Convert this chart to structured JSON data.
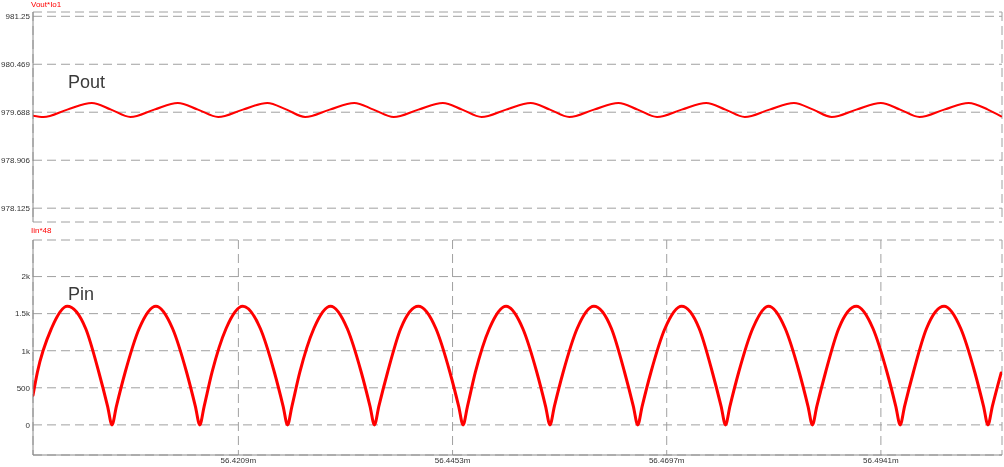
{
  "chart_data": [
    {
      "type": "line",
      "x": [
        56.3975,
        56.3987,
        56.4014,
        56.4042,
        56.4064,
        56.4086,
        56.4113,
        56.414,
        56.4163,
        56.4186,
        56.4214,
        56.4242,
        56.4264,
        56.4285,
        56.4313,
        56.4341,
        56.4363,
        56.4386,
        56.4414,
        56.4442,
        56.4464,
        56.4486,
        56.4514,
        56.4542,
        56.4564,
        56.4586,
        56.4614,
        56.4642,
        56.4664,
        56.4686,
        56.4714,
        56.4742,
        56.4764,
        56.4786,
        56.4814,
        56.4842,
        56.4864,
        56.4885,
        56.4913,
        56.4941,
        56.4963,
        56.4985,
        56.5013,
        56.5041,
        56.5063,
        56.5078
      ],
      "series": [
        {
          "name": "Vout*Io1",
          "color": "#ff0000",
          "values": [
            979.63,
            979.61,
            979.73,
            979.84,
            979.73,
            979.61,
            979.73,
            979.84,
            979.73,
            979.61,
            979.73,
            979.84,
            979.73,
            979.61,
            979.73,
            979.84,
            979.73,
            979.61,
            979.73,
            979.84,
            979.73,
            979.61,
            979.73,
            979.84,
            979.73,
            979.61,
            979.73,
            979.84,
            979.73,
            979.61,
            979.73,
            979.84,
            979.73,
            979.61,
            979.73,
            979.84,
            979.73,
            979.61,
            979.73,
            979.84,
            979.73,
            979.61,
            979.73,
            979.84,
            979.73,
            979.62
          ]
        }
      ],
      "annotations": [
        "Pout"
      ],
      "xlim": [
        56.3975,
        56.5079
      ],
      "xticks": [
        {
          "value": 56.4209,
          "label": null
        },
        {
          "value": 56.4453,
          "label": null
        },
        {
          "value": 56.4697,
          "label": null
        },
        {
          "value": 56.4941,
          "label": null
        }
      ],
      "ylim": [
        977.9,
        981.32
      ],
      "yticks": [
        978.125,
        978.906,
        979.688,
        980.469,
        981.25
      ],
      "grid": true,
      "legend": "top left",
      "tick_labels": "y"
    },
    {
      "type": "line",
      "x": [
        56.3975,
        56.398,
        56.3996,
        56.4014,
        56.4035,
        56.405,
        56.406,
        56.4065,
        56.407,
        56.408,
        56.4096,
        56.4115,
        56.4134,
        56.415,
        56.416,
        56.4165,
        56.417,
        56.4179,
        56.4195,
        56.4214,
        56.4234,
        56.425,
        56.426,
        56.4265,
        56.427,
        56.4279,
        56.4295,
        56.4314,
        56.4333,
        56.4349,
        56.4359,
        56.4364,
        56.4369,
        56.4379,
        56.4394,
        56.4414,
        56.4434,
        56.445,
        56.446,
        56.4465,
        56.447,
        56.4479,
        56.4495,
        56.4514,
        56.4533,
        56.4549,
        56.4559,
        56.4564,
        56.4569,
        56.4579,
        56.4595,
        56.4614,
        56.4634,
        56.4649,
        56.4659,
        56.4664,
        56.4669,
        56.4679,
        56.4695,
        56.4714,
        56.4734,
        56.4749,
        56.4759,
        56.4764,
        56.4769,
        56.4779,
        56.4795,
        56.4813,
        56.4832,
        56.4848,
        56.4858,
        56.4863,
        56.4868,
        56.4878,
        56.4893,
        56.4913,
        56.4932,
        56.4948,
        56.4958,
        56.4963,
        56.4968,
        56.4978,
        56.4993,
        56.5013,
        56.5032,
        56.5048,
        56.5058,
        56.5063,
        56.5068,
        56.5078
      ],
      "series": [
        {
          "name": "Iin*48",
          "color": "#ff0000",
          "values": [
            400,
            710,
            1300,
            1600,
            1300,
            710,
            250,
            0,
            250,
            710,
            1300,
            1600,
            1300,
            710,
            250,
            0,
            250,
            710,
            1300,
            1600,
            1300,
            710,
            250,
            0,
            250,
            710,
            1300,
            1600,
            1300,
            710,
            250,
            0,
            250,
            710,
            1300,
            1600,
            1300,
            710,
            250,
            0,
            250,
            710,
            1300,
            1600,
            1300,
            710,
            250,
            0,
            250,
            710,
            1300,
            1600,
            1300,
            710,
            250,
            0,
            250,
            710,
            1300,
            1600,
            1300,
            710,
            250,
            0,
            250,
            710,
            1300,
            1600,
            1300,
            710,
            250,
            0,
            250,
            710,
            1300,
            1600,
            1300,
            710,
            250,
            0,
            250,
            710,
            1300,
            1600,
            1300,
            710,
            250,
            0,
            250,
            700
          ]
        }
      ],
      "annotations": [
        "Pin"
      ],
      "xlim": [
        56.3975,
        56.5079
      ],
      "xticks": [
        {
          "value": 56.4209,
          "label": "56.4209m"
        },
        {
          "value": 56.4453,
          "label": "56.4453m"
        },
        {
          "value": 56.4697,
          "label": "56.4697m"
        },
        {
          "value": 56.4941,
          "label": "56.4941m"
        }
      ],
      "ylim": [
        -406,
        2493
      ],
      "yticks": [
        0,
        500,
        {
          "value": 1000,
          "label": "1k"
        },
        {
          "value": 1500,
          "label": "1.5k"
        },
        {
          "value": 2000,
          "label": "2k"
        }
      ],
      "grid": true,
      "legend": "top left"
    }
  ]
}
